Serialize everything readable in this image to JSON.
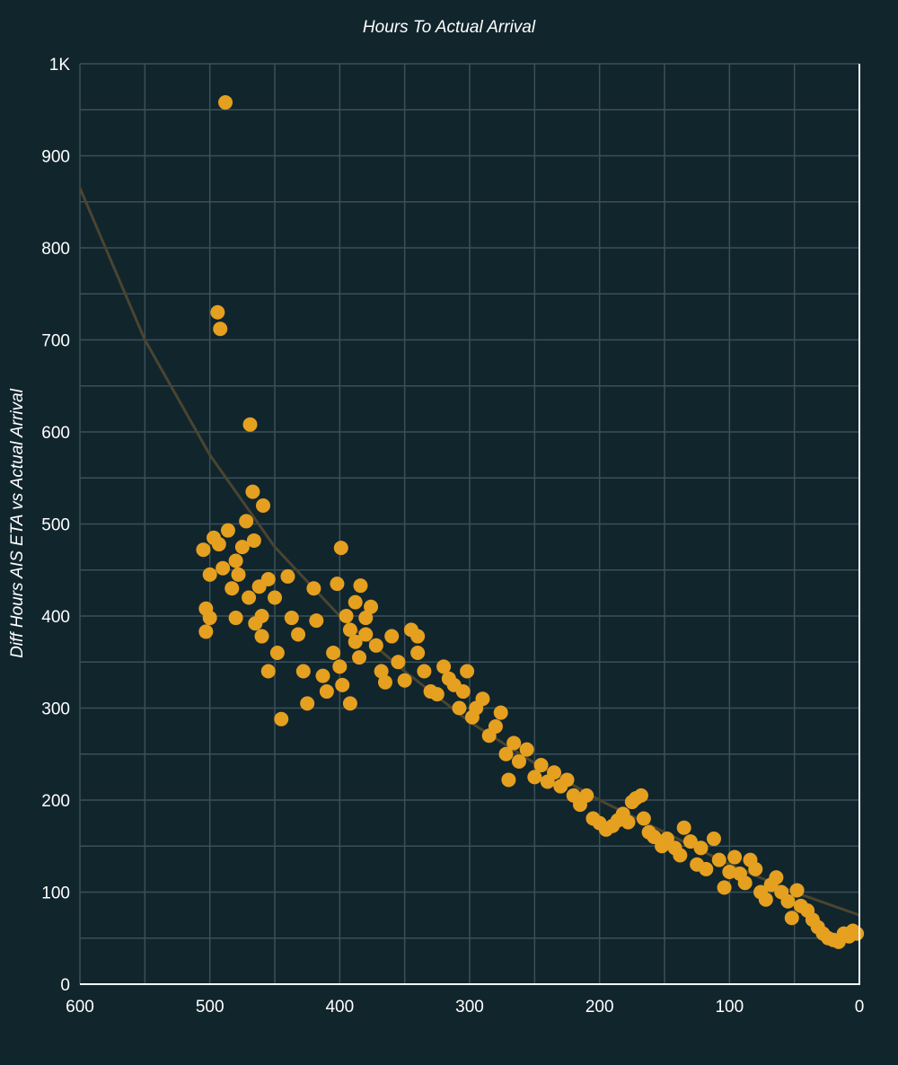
{
  "chart_data": {
    "type": "scatter",
    "title": "Hours To Actual Arrival",
    "xlabel": "Hours To Actual Arrival",
    "ylabel": "Diff Hours AIS ETA vs Actual Arrival",
    "xlim": [
      600,
      0
    ],
    "x_reversed": true,
    "ylim": [
      0,
      1000
    ],
    "xticks": [
      "600",
      "500",
      "400",
      "300",
      "200",
      "100",
      "0"
    ],
    "yticks": [
      "0",
      "100",
      "200",
      "300",
      "400",
      "500",
      "600",
      "700",
      "800",
      "900",
      "1K"
    ],
    "grid": true,
    "legend": null,
    "colors": {
      "background": "#11252d",
      "grid": "#3a5058",
      "points": "#e5a020",
      "trendline": "#4a4530",
      "axis": "#ffffff"
    },
    "trendline": {
      "type": "exponential",
      "x": [
        600,
        550,
        500,
        450,
        400,
        350,
        300,
        250,
        200,
        150,
        100,
        50,
        0
      ],
      "y": [
        865,
        700,
        575,
        475,
        400,
        340,
        285,
        240,
        200,
        165,
        130,
        100,
        75
      ]
    },
    "series": [
      {
        "name": "Diff Hours AIS ETA vs Actual Arrival",
        "points": [
          [
            488,
            958
          ],
          [
            494,
            730
          ],
          [
            492,
            712
          ],
          [
            469,
            608
          ],
          [
            467,
            535
          ],
          [
            459,
            520
          ],
          [
            472,
            503
          ],
          [
            466,
            482
          ],
          [
            505,
            472
          ],
          [
            497,
            485
          ],
          [
            493,
            478
          ],
          [
            486,
            493
          ],
          [
            480,
            460
          ],
          [
            475,
            475
          ],
          [
            478,
            445
          ],
          [
            500,
            445
          ],
          [
            490,
            452
          ],
          [
            483,
            430
          ],
          [
            470,
            420
          ],
          [
            462,
            432
          ],
          [
            455,
            440
          ],
          [
            450,
            420
          ],
          [
            460,
            400
          ],
          [
            465,
            392
          ],
          [
            480,
            398
          ],
          [
            503,
            408
          ],
          [
            500,
            398
          ],
          [
            503,
            383
          ],
          [
            460,
            378
          ],
          [
            455,
            340
          ],
          [
            448,
            360
          ],
          [
            445,
            288
          ],
          [
            440,
            443
          ],
          [
            437,
            398
          ],
          [
            432,
            380
          ],
          [
            428,
            340
          ],
          [
            425,
            305
          ],
          [
            420,
            430
          ],
          [
            418,
            395
          ],
          [
            413,
            335
          ],
          [
            410,
            318
          ],
          [
            405,
            360
          ],
          [
            402,
            435
          ],
          [
            400,
            345
          ],
          [
            398,
            325
          ],
          [
            392,
            305
          ],
          [
            388,
            372
          ],
          [
            385,
            355
          ],
          [
            380,
            380
          ],
          [
            399,
            474
          ],
          [
            395,
            400
          ],
          [
            392,
            385
          ],
          [
            388,
            415
          ],
          [
            384,
            433
          ],
          [
            380,
            398
          ],
          [
            376,
            410
          ],
          [
            372,
            368
          ],
          [
            368,
            340
          ],
          [
            365,
            328
          ],
          [
            360,
            378
          ],
          [
            355,
            350
          ],
          [
            350,
            330
          ],
          [
            345,
            385
          ],
          [
            340,
            378
          ],
          [
            340,
            360
          ],
          [
            335,
            340
          ],
          [
            330,
            318
          ],
          [
            325,
            315
          ],
          [
            320,
            345
          ],
          [
            316,
            332
          ],
          [
            312,
            325
          ],
          [
            308,
            300
          ],
          [
            305,
            318
          ],
          [
            302,
            340
          ],
          [
            298,
            290
          ],
          [
            295,
            300
          ],
          [
            290,
            310
          ],
          [
            285,
            270
          ],
          [
            280,
            280
          ],
          [
            276,
            295
          ],
          [
            272,
            250
          ],
          [
            270,
            222
          ],
          [
            266,
            262
          ],
          [
            262,
            242
          ],
          [
            256,
            255
          ],
          [
            250,
            225
          ],
          [
            245,
            238
          ],
          [
            240,
            220
          ],
          [
            235,
            230
          ],
          [
            230,
            215
          ],
          [
            225,
            222
          ],
          [
            220,
            205
          ],
          [
            215,
            195
          ],
          [
            210,
            205
          ],
          [
            205,
            180
          ],
          [
            200,
            175
          ],
          [
            195,
            168
          ],
          [
            190,
            172
          ],
          [
            186,
            178
          ],
          [
            182,
            185
          ],
          [
            178,
            176
          ],
          [
            175,
            198
          ],
          [
            172,
            202
          ],
          [
            168,
            205
          ],
          [
            166,
            180
          ],
          [
            162,
            165
          ],
          [
            158,
            160
          ],
          [
            152,
            150
          ],
          [
            148,
            158
          ],
          [
            142,
            148
          ],
          [
            138,
            140
          ],
          [
            135,
            170
          ],
          [
            130,
            155
          ],
          [
            125,
            130
          ],
          [
            122,
            148
          ],
          [
            118,
            125
          ],
          [
            112,
            158
          ],
          [
            108,
            135
          ],
          [
            104,
            105
          ],
          [
            100,
            122
          ],
          [
            96,
            138
          ],
          [
            92,
            120
          ],
          [
            88,
            110
          ],
          [
            84,
            135
          ],
          [
            80,
            125
          ],
          [
            76,
            100
          ],
          [
            72,
            92
          ],
          [
            68,
            108
          ],
          [
            64,
            116
          ],
          [
            60,
            100
          ],
          [
            55,
            90
          ],
          [
            52,
            72
          ],
          [
            48,
            102
          ],
          [
            45,
            85
          ],
          [
            40,
            80
          ],
          [
            36,
            70
          ],
          [
            32,
            62
          ],
          [
            28,
            55
          ],
          [
            24,
            50
          ],
          [
            20,
            48
          ],
          [
            16,
            46
          ],
          [
            12,
            55
          ],
          [
            8,
            52
          ],
          [
            5,
            58
          ],
          [
            2,
            55
          ]
        ]
      }
    ]
  }
}
